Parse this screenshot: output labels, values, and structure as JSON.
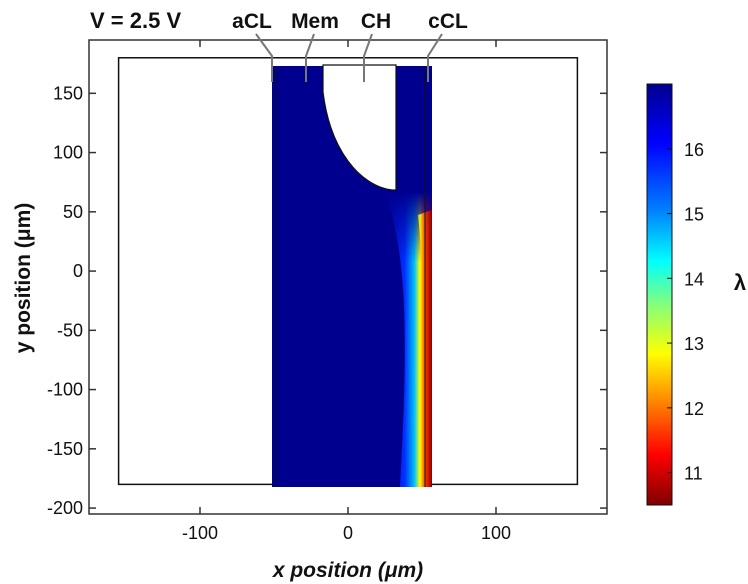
{
  "chart_data": {
    "type": "heatmap",
    "voltage_label": "V = 2.5 V",
    "xlabel": "x position (μm)",
    "ylabel": "y position (μm)",
    "colorbar_label": "λ",
    "xlim": [
      -175,
      175
    ],
    "ylim": [
      -205,
      195
    ],
    "x_ticks": [
      -100,
      0,
      100
    ],
    "y_ticks": [
      150,
      100,
      50,
      0,
      -50,
      -100,
      -150,
      -200
    ],
    "colorbar_range": [
      10.5,
      17.0
    ],
    "colorbar_ticks": [
      16,
      15,
      14,
      13,
      12,
      11
    ],
    "colormap": [
      "#7f0000",
      "#ff0000",
      "#ff8000",
      "#ffff00",
      "#80ff80",
      "#00ffff",
      "#0080ff",
      "#0000ff",
      "#00008f"
    ],
    "domain": {
      "x": [
        -155,
        155
      ],
      "y": [
        -180,
        180
      ]
    },
    "regions": [
      {
        "label": "aCL",
        "x": [
          -55,
          -51
        ]
      },
      {
        "label": "Mem",
        "x": [
          -51,
          51
        ]
      },
      {
        "label": "CH",
        "x": [
          -18,
          30
        ]
      },
      {
        "label": "cCL",
        "x": [
          51,
          56
        ]
      }
    ],
    "channel_bottom_y": 72,
    "field_summary": "λ ≈ 17 through most of the membrane, decreasing to ≈ 10.5 near the cathode catalyst layer for y below ≈ 60 μm"
  }
}
